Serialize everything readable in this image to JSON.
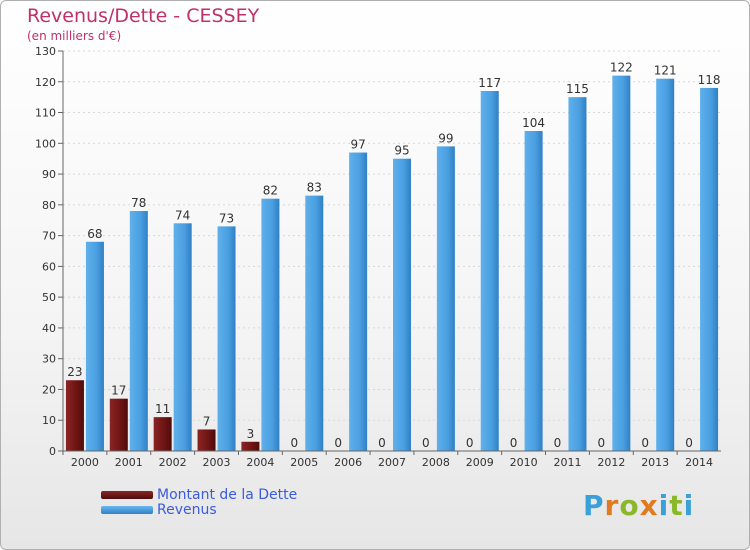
{
  "header": {
    "title": "Revenus/Dette - CESSEY",
    "subtitle": "(en milliers d'€)"
  },
  "legend": {
    "items": [
      {
        "label": "Montant de la Dette",
        "color": "#7a1818"
      },
      {
        "label": "Revenus",
        "color": "#4a9fe0"
      }
    ]
  },
  "brand": {
    "logo_text": "Proxiti"
  },
  "chart_data": {
    "type": "bar",
    "title": "Revenus/Dette - CESSEY",
    "subtitle": "(en milliers d'€)",
    "categories": [
      "2000",
      "2001",
      "2002",
      "2003",
      "2004",
      "2005",
      "2006",
      "2007",
      "2008",
      "2009",
      "2010",
      "2011",
      "2012",
      "2013",
      "2014"
    ],
    "series": [
      {
        "name": "Montant de la Dette",
        "color": "#7a1818",
        "values": [
          23,
          17,
          11,
          7,
          3,
          0,
          0,
          0,
          0,
          0,
          0,
          0,
          0,
          0,
          0
        ]
      },
      {
        "name": "Revenus",
        "color": "#4a9fe0",
        "values": [
          68,
          78,
          74,
          73,
          82,
          83,
          97,
          95,
          99,
          117,
          104,
          115,
          122,
          121,
          118
        ]
      }
    ],
    "ylim": [
      0,
      130
    ],
    "yticks": [
      0,
      10,
      20,
      30,
      40,
      50,
      60,
      70,
      80,
      90,
      100,
      110,
      120,
      130
    ],
    "grid": true,
    "legend_position": "bottom-left",
    "xlabel": "",
    "ylabel": ""
  }
}
